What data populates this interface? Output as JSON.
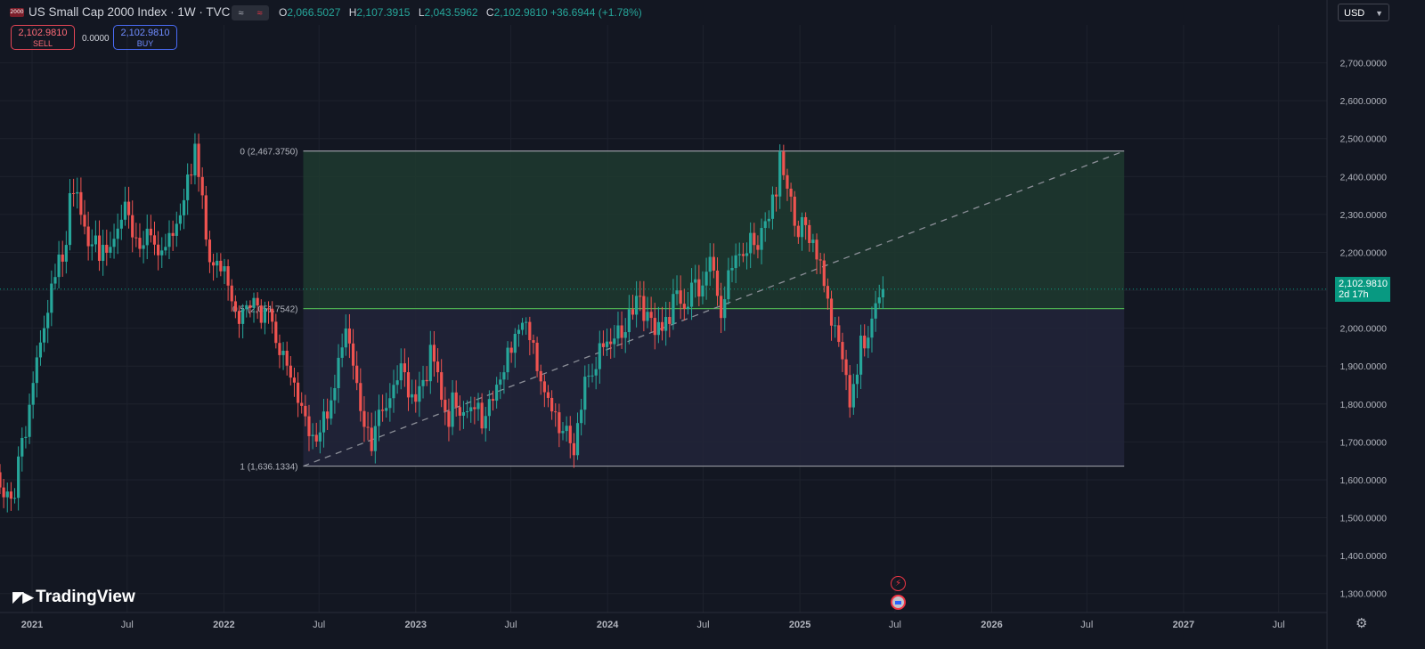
{
  "header": {
    "symbol_badge": "2000",
    "title": "US Small Cap 2000 Index · 1W · TVC",
    "icon_buttons": [
      "≈",
      "≈"
    ],
    "ohlc": [
      {
        "k": "O",
        "v": "2,066.5027"
      },
      {
        "k": "H",
        "v": "2,107.3915"
      },
      {
        "k": "L",
        "v": "2,043.5962"
      },
      {
        "k": "C",
        "v": "2,102.9810 +36.6944 (+1.78%)"
      }
    ]
  },
  "trade": {
    "sell_price": "2,102.9810",
    "sell_label": "SELL",
    "spread": "0.0000",
    "buy_price": "2,102.9810",
    "buy_label": "BUY"
  },
  "currency": "USD",
  "current_price": {
    "value": "2,102.9810",
    "countdown": "2d 17h"
  },
  "branding": "TradingView",
  "icons": {
    "event_1": "lightning-icon",
    "event_2": "us-flag-icon",
    "settings": "gear-icon",
    "currency_menu": "chevron-down-icon"
  },
  "colors": {
    "background": "#131722",
    "up": "#26a69a",
    "down": "#ef5350",
    "fib_upper_fill": "#1e3a2f",
    "fib_lower_fill": "#22253a",
    "fib_mid_line": "#4caf50"
  },
  "chart_data": {
    "type": "candlestick",
    "timeframe": "1W",
    "y_axis": {
      "range": [
        1250,
        2800
      ],
      "ticks": [
        1300,
        1400,
        1500,
        1600,
        1700,
        1800,
        1900,
        2000,
        2100,
        2200,
        2300,
        2400,
        2500,
        2600,
        2700
      ],
      "tick_labels": [
        "1,300.0000",
        "1,400.0000",
        "1,500.0000",
        "1,600.0000",
        "1,700.0000",
        "1,800.0000",
        "1,900.0000",
        "2,000.0000",
        "2,100.0000",
        "2,200.0000",
        "2,300.0000",
        "2,400.0000",
        "2,500.0000",
        "2,600.0000",
        "2,700.0000"
      ]
    },
    "x_axis": {
      "range": [
        "2020-11-01",
        "2027-10-01"
      ],
      "ticks": [
        {
          "label": "2021",
          "date": "2021-01-01"
        },
        {
          "label": "Jul",
          "date": "2021-07-01"
        },
        {
          "label": "2022",
          "date": "2022-01-01"
        },
        {
          "label": "Jul",
          "date": "2022-07-01"
        },
        {
          "label": "2023",
          "date": "2023-01-01"
        },
        {
          "label": "Jul",
          "date": "2023-07-01"
        },
        {
          "label": "2024",
          "date": "2024-01-01"
        },
        {
          "label": "Jul",
          "date": "2024-07-01"
        },
        {
          "label": "2025",
          "date": "2025-01-01"
        },
        {
          "label": "Jul",
          "date": "2025-07-01"
        },
        {
          "label": "2026",
          "date": "2026-01-01"
        },
        {
          "label": "Jul",
          "date": "2026-07-01"
        },
        {
          "label": "2027",
          "date": "2027-01-01"
        },
        {
          "label": "Jul",
          "date": "2027-07-01"
        }
      ]
    },
    "current_price": 2102.981,
    "fibonacci": {
      "start_date": "2022-06-01",
      "end_date": "2026-09-10",
      "levels": [
        {
          "ratio": "0",
          "price": 2467.375,
          "label": "0 (2,467.3750)"
        },
        {
          "ratio": "0.5",
          "price": 2051.7542,
          "label": "0.5 (2,051.7542)"
        },
        {
          "ratio": "1",
          "price": 1636.1334,
          "label": "1 (1,636.1334)"
        }
      ]
    },
    "close_path": [
      [
        "2020-11-01",
        1620
      ],
      [
        "2020-11-29",
        1560
      ],
      [
        "2021-01-01",
        1800
      ],
      [
        "2021-02-01",
        2100
      ],
      [
        "2021-02-28",
        2230
      ],
      [
        "2021-03-22",
        2350
      ],
      [
        "2021-04-20",
        2200
      ],
      [
        "2021-05-20",
        2230
      ],
      [
        "2021-06-20",
        2330
      ],
      [
        "2021-07-20",
        2200
      ],
      [
        "2021-08-20",
        2230
      ],
      [
        "2021-09-20",
        2260
      ],
      [
        "2021-10-15",
        2300
      ],
      [
        "2021-11-08",
        2440
      ],
      [
        "2021-11-30",
        2200
      ],
      [
        "2022-01-01",
        2190
      ],
      [
        "2022-01-25",
        2000
      ],
      [
        "2022-02-25",
        2050
      ],
      [
        "2022-03-25",
        2080
      ],
      [
        "2022-04-25",
        1940
      ],
      [
        "2022-05-20",
        1780
      ],
      [
        "2022-06-16",
        1670
      ],
      [
        "2022-07-25",
        1850
      ],
      [
        "2022-08-15",
        2000
      ],
      [
        "2022-09-10",
        1830
      ],
      [
        "2022-09-30",
        1680
      ],
      [
        "2022-10-30",
        1820
      ],
      [
        "2022-12-01",
        1880
      ],
      [
        "2023-01-01",
        1760
      ],
      [
        "2023-02-01",
        1980
      ],
      [
        "2023-03-01",
        1790
      ],
      [
        "2023-04-01",
        1760
      ],
      [
        "2023-05-01",
        1760
      ],
      [
        "2023-06-01",
        1860
      ],
      [
        "2023-07-25",
        1980
      ],
      [
        "2023-08-25",
        1880
      ],
      [
        "2023-09-25",
        1780
      ],
      [
        "2023-10-27",
        1640
      ],
      [
        "2023-12-01",
        1920
      ],
      [
        "2024-01-01",
        2000
      ],
      [
        "2024-02-01",
        1960
      ],
      [
        "2024-03-05",
        2080
      ],
      [
        "2024-04-05",
        2020
      ],
      [
        "2024-05-01",
        2060
      ],
      [
        "2024-06-01",
        2040
      ],
      [
        "2024-07-15",
        2220
      ],
      [
        "2024-08-05",
        2070
      ],
      [
        "2024-09-01",
        2150
      ],
      [
        "2024-10-01",
        2200
      ],
      [
        "2024-11-25",
        2430
      ],
      [
        "2024-12-25",
        2230
      ],
      [
        "2025-01-25",
        2280
      ],
      [
        "2025-02-25",
        2100
      ],
      [
        "2025-04-08",
        1760
      ],
      [
        "2025-05-05",
        2000
      ],
      [
        "2025-05-25",
        2080
      ],
      [
        "2025-06-10",
        2102.98
      ]
    ],
    "last_date": "2025-06-10"
  }
}
